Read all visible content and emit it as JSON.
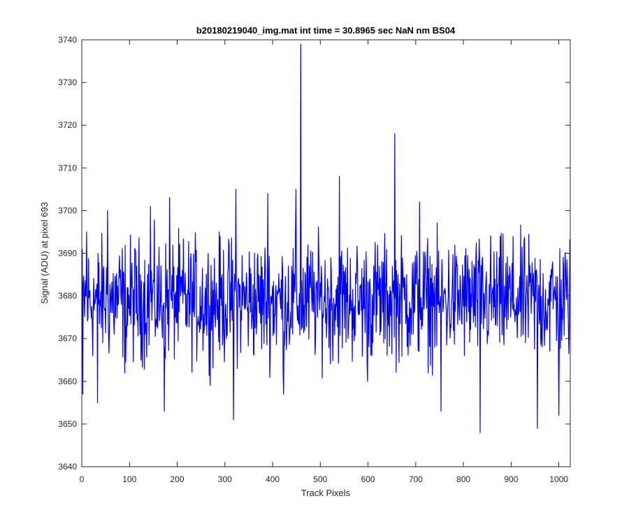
{
  "chart_data": {
    "type": "line",
    "title": "b20180219040_img.mat int time = 30.8965 sec  NaN nm BS04",
    "xlabel": "Track Pixels",
    "ylabel": "Signal (ADU) at pixel 693",
    "xlim": [
      0,
      1024
    ],
    "ylim": [
      3640,
      3740
    ],
    "xticks": [
      0,
      100,
      200,
      300,
      400,
      500,
      600,
      700,
      800,
      900,
      1000
    ],
    "yticks": [
      3640,
      3650,
      3660,
      3670,
      3680,
      3690,
      3700,
      3710,
      3720,
      3730,
      3740
    ],
    "grid": false,
    "legend": "none",
    "box": true,
    "series": [
      {
        "color": "#0000ff",
        "n_points": 1024,
        "baseline": 3679,
        "noise_amplitude": 7,
        "peaks": [
          {
            "x": 2,
            "y": 3657
          },
          {
            "x": 10,
            "y": 3695
          },
          {
            "x": 33,
            "y": 3655
          },
          {
            "x": 54,
            "y": 3700
          },
          {
            "x": 90,
            "y": 3662
          },
          {
            "x": 144,
            "y": 3701
          },
          {
            "x": 173,
            "y": 3653
          },
          {
            "x": 184,
            "y": 3703
          },
          {
            "x": 318,
            "y": 3651
          },
          {
            "x": 323,
            "y": 3705
          },
          {
            "x": 390,
            "y": 3704
          },
          {
            "x": 423,
            "y": 3657
          },
          {
            "x": 449,
            "y": 3705
          },
          {
            "x": 459,
            "y": 3739
          },
          {
            "x": 540,
            "y": 3708
          },
          {
            "x": 599,
            "y": 3660
          },
          {
            "x": 656,
            "y": 3718
          },
          {
            "x": 708,
            "y": 3702
          },
          {
            "x": 753,
            "y": 3653
          },
          {
            "x": 835,
            "y": 3648
          },
          {
            "x": 955,
            "y": 3649
          },
          {
            "x": 1000,
            "y": 3652
          }
        ]
      }
    ]
  }
}
